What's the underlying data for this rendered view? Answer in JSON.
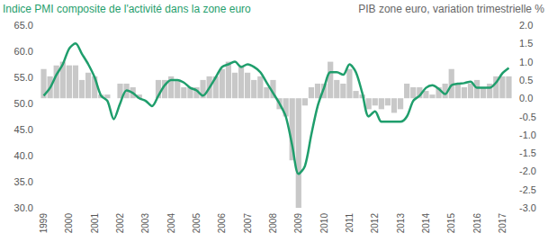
{
  "chart_data": {
    "type": "bar_line",
    "ylabel": "Indice PMI composite de l'activité dans la zone euro",
    "y2label": "PIB zone euro, variation trimestrielle %",
    "categories": [
      "1999",
      null,
      null,
      null,
      "2000",
      null,
      null,
      null,
      "2001",
      null,
      null,
      null,
      "2002",
      null,
      null,
      null,
      "2003",
      null,
      null,
      null,
      "2004",
      null,
      null,
      null,
      "2005",
      null,
      null,
      null,
      "2006",
      null,
      null,
      null,
      "2007",
      null,
      null,
      null,
      "2008",
      null,
      null,
      null,
      "2009",
      null,
      null,
      null,
      "2010",
      null,
      null,
      null,
      "2011",
      null,
      null,
      null,
      "2012",
      null,
      null,
      null,
      "2013",
      null,
      null,
      null,
      "2014",
      null,
      null,
      null,
      "2015",
      null,
      null,
      null,
      "2016",
      null,
      null,
      null,
      "2017",
      null
    ],
    "series": [
      {
        "type": "bar",
        "axis": "y2",
        "color": "#c8c8c8",
        "values": [
          0.8,
          0.6,
          0.9,
          1.0,
          0.9,
          0.9,
          0.5,
          0.7,
          0.6,
          0.1,
          0.1,
          0.0,
          0.4,
          0.4,
          0.3,
          0.1,
          0.0,
          0.0,
          0.5,
          0.5,
          0.6,
          0.5,
          0.3,
          0.3,
          0.3,
          0.5,
          0.6,
          0.6,
          0.8,
          1.0,
          0.7,
          0.9,
          0.7,
          0.5,
          0.6,
          0.3,
          0.5,
          -0.3,
          -0.5,
          -1.7,
          -3.0,
          -0.2,
          0.3,
          0.4,
          0.4,
          1.0,
          0.5,
          0.4,
          0.8,
          0.2,
          0.1,
          -0.3,
          -0.2,
          -0.3,
          -0.2,
          -0.4,
          -0.3,
          0.4,
          0.3,
          0.3,
          0.2,
          0.1,
          0.3,
          0.4,
          0.8,
          0.4,
          0.3,
          0.4,
          0.5,
          0.3,
          0.4,
          0.6,
          0.6,
          0.6
        ]
      },
      {
        "type": "line",
        "color": "#1f9e6c",
        "values": [
          51.5,
          53.0,
          55.5,
          57.5,
          60.5,
          61.5,
          59.5,
          57.5,
          55.0,
          51.5,
          50.5,
          47.0,
          50.0,
          52.5,
          52.0,
          51.0,
          50.5,
          49.5,
          51.5,
          53.5,
          54.5,
          54.5,
          54.0,
          53.0,
          52.5,
          51.5,
          53.0,
          55.0,
          57.0,
          57.5,
          58.0,
          57.0,
          57.5,
          57.0,
          56.0,
          54.0,
          52.0,
          50.0,
          47.5,
          42.0,
          36.5,
          38.0,
          44.0,
          49.5,
          53.0,
          56.0,
          56.0,
          55.5,
          57.5,
          56.0,
          52.0,
          47.5,
          48.5,
          46.5,
          46.5,
          46.5,
          46.5,
          47.5,
          50.5,
          51.5,
          53.0,
          53.5,
          52.8,
          51.8,
          53.5,
          53.8,
          53.9,
          54.2,
          53.0,
          53.0,
          53.0,
          54.0,
          55.8,
          56.8
        ]
      }
    ],
    "ylim": [
      30,
      65
    ],
    "yticks": [
      {
        "value": 30,
        "label": "30.0"
      },
      {
        "value": 35,
        "label": "35.0"
      },
      {
        "value": 40,
        "label": "40.0"
      },
      {
        "value": 45,
        "label": "45.0"
      },
      {
        "value": 50,
        "label": "50.0"
      },
      {
        "value": 55,
        "label": "55.0"
      },
      {
        "value": 60,
        "label": "60.0"
      },
      {
        "value": 65,
        "label": "65.0"
      }
    ],
    "y2lim": [
      -3,
      2
    ],
    "y2ticks": [
      {
        "value": -3,
        "label": "-3.0"
      },
      {
        "value": -2.5,
        "label": "-2.5"
      },
      {
        "value": -2,
        "label": "-2.0"
      },
      {
        "value": -1.5,
        "label": "-1.5"
      },
      {
        "value": -1,
        "label": "-1.0"
      },
      {
        "value": -0.5,
        "label": "-0.5"
      },
      {
        "value": 0,
        "label": "0.0"
      },
      {
        "value": 0.5,
        "label": "0.5"
      },
      {
        "value": 1,
        "label": "1.0"
      },
      {
        "value": 1.5,
        "label": "1.5"
      },
      {
        "value": 2,
        "label": "2.0"
      }
    ],
    "grid": false
  }
}
